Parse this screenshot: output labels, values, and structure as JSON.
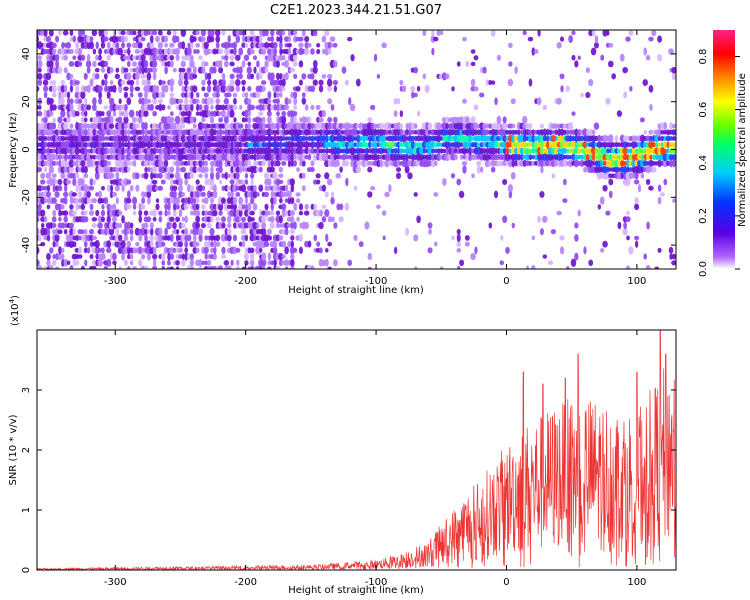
{
  "chart_data": [
    {
      "type": "heatmap",
      "title": "C2E1.2023.344.21.51.G07",
      "xlabel": "Height of straight line (km)",
      "ylabel": "Frequency (Hz)",
      "xlim": [
        -360,
        130
      ],
      "ylim": [
        -50,
        50
      ],
      "xticks": [
        -300,
        -200,
        -100,
        0,
        100
      ],
      "xtick_labels": [
        "-300",
        "-200",
        "-100",
        "0",
        "100"
      ],
      "yticks": [
        40,
        20,
        0,
        -20,
        -40
      ],
      "ytick_labels": [
        "40",
        "20",
        "0",
        "-20",
        "-40"
      ],
      "colorbar": {
        "label": "Normalized spectral amplitude",
        "range": [
          0.0,
          0.9
        ],
        "ticks": [
          0.0,
          0.2,
          0.4,
          0.6,
          0.8
        ],
        "tick_labels": [
          "0.0",
          "0.2",
          "0.4",
          "0.6",
          "0.8"
        ],
        "colormap": "rainbow-white-to-magenta"
      },
      "ridge_frequency": {
        "x": [
          -200,
          -150,
          -120,
          -100,
          -80,
          -60,
          -40,
          -20,
          0,
          20,
          40,
          60,
          80,
          100,
          120
        ],
        "y": [
          2,
          4,
          2,
          3,
          1,
          1,
          5,
          3,
          2,
          1,
          2,
          0,
          -4,
          -3,
          1
        ]
      },
      "colors": {
        "low": "#e6ccff",
        "mid": "#6a0dcd",
        "peak": "#ff0000"
      }
    },
    {
      "type": "line",
      "title": "",
      "xlabel": "Height of straight line (km)",
      "ylabel": "SNR (10 * v/v)",
      "multiplier_label": "(x10",
      "multiplier_exp": "4",
      "multiplier_close": ")",
      "xlim": [
        -360,
        130
      ],
      "ylim": [
        0,
        4
      ],
      "xticks": [
        -300,
        -200,
        -100,
        0,
        100
      ],
      "xtick_labels": [
        "-300",
        "-200",
        "-100",
        "0",
        "100"
      ],
      "yticks": [
        0,
        1,
        2,
        3
      ],
      "ytick_labels": [
        "0",
        "1",
        "2",
        "3"
      ],
      "series_color": "#ee3333",
      "envelope": {
        "x": [
          -360,
          -300,
          -200,
          -150,
          -100,
          -80,
          -60,
          -50,
          -40,
          -30,
          -20,
          -10,
          0,
          10,
          20,
          40,
          60,
          80,
          100,
          120,
          130
        ],
        "y": [
          0.02,
          0.03,
          0.05,
          0.06,
          0.12,
          0.2,
          0.35,
          0.55,
          0.75,
          0.95,
          1.1,
          1.3,
          1.5,
          1.7,
          1.8,
          2.0,
          2.1,
          2.0,
          1.9,
          2.4,
          2.6
        ]
      },
      "peaks": {
        "x": [
          13,
          28,
          45,
          55,
          100,
          118,
          122
        ],
        "y": [
          3.3,
          3.1,
          3.2,
          3.6,
          3.3,
          4.0,
          3.6
        ]
      }
    }
  ]
}
